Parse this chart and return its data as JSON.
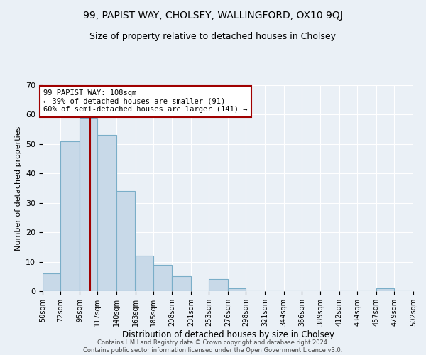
{
  "title": "99, PAPIST WAY, CHOLSEY, WALLINGFORD, OX10 9QJ",
  "subtitle": "Size of property relative to detached houses in Cholsey",
  "xlabel": "Distribution of detached houses by size in Cholsey",
  "ylabel": "Number of detached properties",
  "bar_labels": [
    "50sqm",
    "72sqm",
    "95sqm",
    "117sqm",
    "140sqm",
    "163sqm",
    "185sqm",
    "208sqm",
    "231sqm",
    "253sqm",
    "276sqm",
    "298sqm",
    "321sqm",
    "344sqm",
    "366sqm",
    "389sqm",
    "412sqm",
    "434sqm",
    "457sqm",
    "479sqm",
    "502sqm"
  ],
  "bar_values": [
    6,
    51,
    59,
    53,
    34,
    12,
    9,
    5,
    0,
    4,
    1,
    0,
    0,
    0,
    0,
    0,
    0,
    0,
    1,
    0
  ],
  "bar_color": "#c8d9e8",
  "bar_edge_color": "#7aaec8",
  "vline_x": 108,
  "vline_color": "#a00000",
  "annotation_text": "99 PAPIST WAY: 108sqm\n← 39% of detached houses are smaller (91)\n60% of semi-detached houses are larger (141) →",
  "annotation_box_color": "#ffffff",
  "annotation_box_edge": "#a00000",
  "ylim": [
    0,
    70
  ],
  "yticks": [
    0,
    10,
    20,
    30,
    40,
    50,
    60,
    70
  ],
  "background_color": "#eaf0f6",
  "title_fontsize": 10,
  "subtitle_fontsize": 9,
  "footer_text": "Contains HM Land Registry data © Crown copyright and database right 2024.\nContains public sector information licensed under the Open Government Licence v3.0.",
  "bin_edges": [
    50,
    72,
    95,
    117,
    140,
    163,
    185,
    208,
    231,
    253,
    276,
    298,
    321,
    344,
    366,
    389,
    412,
    434,
    457,
    479,
    502
  ]
}
